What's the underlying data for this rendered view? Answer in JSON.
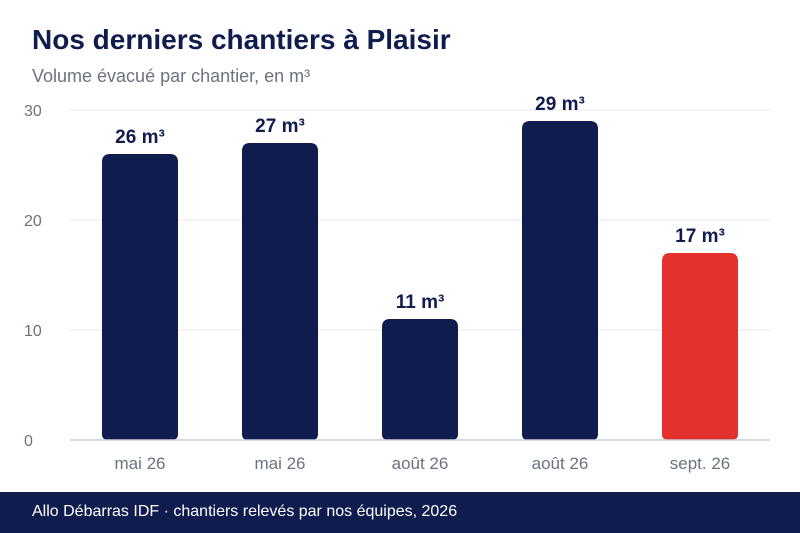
{
  "header": {
    "title": "Nos derniers chantiers à Plaisir",
    "subtitle": "Volume évacué par chantier, en m³"
  },
  "footer": {
    "source": "Allo Débarras IDF · chantiers relevés par nos équipes, 2026"
  },
  "colors": {
    "bar_default": "#0f1c4d",
    "bar_highlight": "#e3312e",
    "label_text": "#0f1c4d",
    "axis_text": "#6b7280",
    "grid": "#e5e7eb",
    "footer_bg": "#0f1c4d"
  },
  "chart_data": {
    "type": "bar",
    "categories": [
      "mai 26",
      "mai 26",
      "août 26",
      "août 26",
      "sept. 26"
    ],
    "values": [
      26,
      27,
      11,
      29,
      17
    ],
    "data_labels": [
      "26 m³",
      "27 m³",
      "11 m³",
      "29 m³",
      "17 m³"
    ],
    "highlight_index": 4,
    "yticks": [
      "0",
      "10",
      "20",
      "30"
    ],
    "ylim": [
      0,
      30
    ],
    "grid": true,
    "legend": "none"
  }
}
